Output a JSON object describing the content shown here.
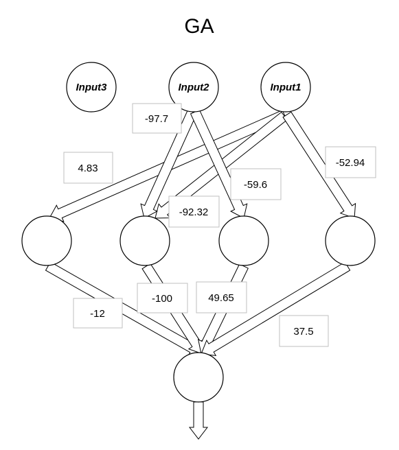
{
  "title": "GA",
  "inputs": [
    {
      "id": "input3",
      "label": "Input3"
    },
    {
      "id": "input2",
      "label": "Input2"
    },
    {
      "id": "input1",
      "label": "Input1"
    }
  ],
  "weights": {
    "w_in2_h2": "-97.7",
    "w_in1_h1": "4.83",
    "w_in1_h4": "-52.94",
    "w_in2_h3": "-59.6",
    "w_in1_h2": "-92.32",
    "w_h1_out": "-12",
    "w_h2_out": "-100",
    "w_h3_out": "49.65",
    "w_h4_out": "37.5"
  }
}
